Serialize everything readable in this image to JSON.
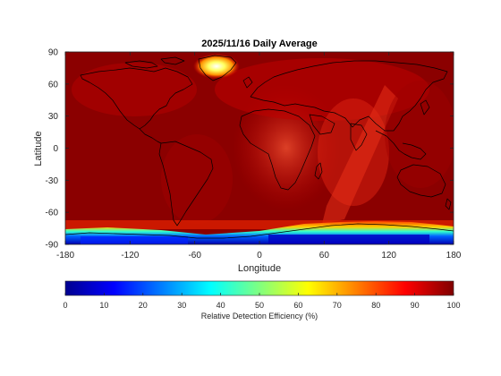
{
  "title": "2025/11/16 Daily Average",
  "map": {
    "xlabel": "Longitude",
    "ylabel": "Latitude",
    "xticks": [
      -180,
      -120,
      -60,
      0,
      60,
      120,
      180
    ],
    "yticks": [
      90,
      60,
      30,
      0,
      -30,
      -60,
      -90
    ],
    "xlim": [
      -180,
      180
    ],
    "ylim": [
      -90,
      90
    ]
  },
  "colorbar": {
    "label": "Relative Detection Efficiency (%)",
    "ticks": [
      0,
      10,
      20,
      30,
      40,
      50,
      60,
      70,
      80,
      90,
      100
    ],
    "range": [
      0,
      100
    ],
    "colormap": "jet"
  },
  "colors": {
    "background_field": "#8b0000",
    "coast": "#000000"
  }
}
